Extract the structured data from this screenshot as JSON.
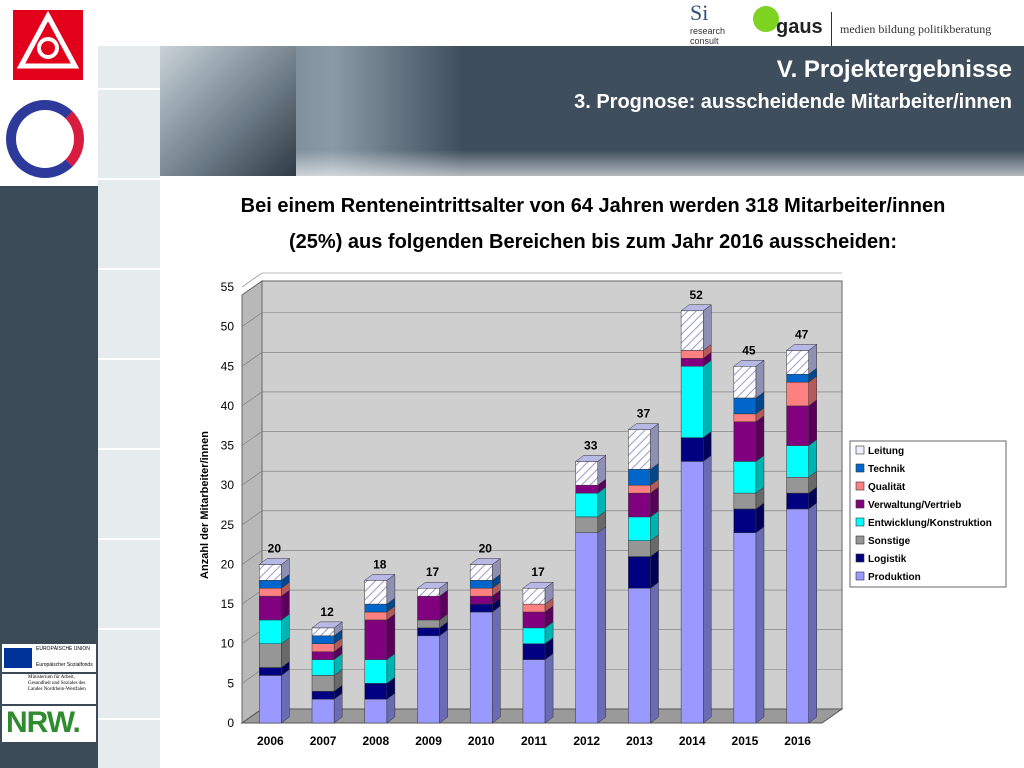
{
  "header": {
    "title": "V. Projektergebnisse",
    "subtitle": "3. Prognose: ausscheidende Mitarbeiter/innen"
  },
  "logos": {
    "research": "research consult",
    "gaus": "gaus",
    "tagline": "medien bildung politikberatung",
    "eu": "EUROPÄISCHE UNION",
    "esf": "Europäischer Sozialfonds",
    "ministry": "Ministerium für Arbeit, Gesundheit und Soziales des Landes Nordrhein-Westfalen",
    "nrw": "NRW."
  },
  "intro": {
    "line1": "Bei einem Renteneintrittsalter von 64 Jahren werden 318 Mitarbeiter/innen",
    "line2": "(25%) aus folgenden Bereichen bis zum Jahr 2016 ausscheiden:"
  },
  "chart_data": {
    "type": "bar",
    "stacked": true,
    "ylabel": "Anzahl der Mitarbeiter/innen",
    "ylim": [
      0,
      55
    ],
    "yticks": [
      0,
      5,
      10,
      15,
      20,
      25,
      30,
      35,
      40,
      45,
      50,
      55
    ],
    "categories": [
      "2006",
      "2007",
      "2008",
      "2009",
      "2010",
      "2011",
      "2012",
      "2013",
      "2014",
      "2015",
      "2016"
    ],
    "totals": [
      20,
      12,
      18,
      17,
      20,
      17,
      33,
      37,
      52,
      45,
      47
    ],
    "legend_position": "right",
    "series": [
      {
        "name": "Produktion",
        "color": "#9999ff",
        "values": [
          6,
          3,
          3,
          11,
          14,
          8,
          24,
          17,
          33,
          24,
          27
        ]
      },
      {
        "name": "Logistik",
        "color": "#000080",
        "values": [
          1,
          1,
          2,
          1,
          1,
          2,
          0,
          4,
          3,
          3,
          2
        ]
      },
      {
        "name": "Sonstige",
        "color": "#969696",
        "values": [
          3,
          2,
          0,
          1,
          0,
          0,
          2,
          2,
          0,
          2,
          2
        ]
      },
      {
        "name": "Entwicklung/Konstruktion",
        "color": "#00ffff",
        "values": [
          3,
          2,
          3,
          0,
          0,
          2,
          3,
          3,
          9,
          4,
          4
        ]
      },
      {
        "name": "Verwaltung/Vertrieb",
        "color": "#800080",
        "values": [
          3,
          1,
          5,
          3,
          1,
          2,
          1,
          3,
          1,
          5,
          5
        ]
      },
      {
        "name": "Qualität",
        "color": "#ff8080",
        "values": [
          1,
          1,
          1,
          0,
          1,
          1,
          0,
          1,
          1,
          1,
          3
        ]
      },
      {
        "name": "Technik",
        "color": "#0066cc",
        "values": [
          1,
          1,
          1,
          0,
          1,
          0,
          0,
          2,
          0,
          2,
          1
        ]
      },
      {
        "name": "Leitung",
        "color": "#ccccff",
        "values": [
          2,
          1,
          3,
          1,
          2,
          2,
          3,
          5,
          5,
          4,
          3
        ]
      }
    ]
  }
}
